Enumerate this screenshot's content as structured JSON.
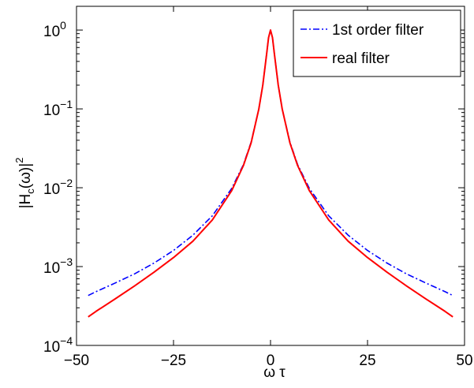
{
  "chart_data": {
    "type": "line",
    "xlabel": "ω τ",
    "ylabel_main": "|H",
    "ylabel_sub": "c",
    "ylabel_mid": "(ω)|",
    "ylabel_sup": "2",
    "x_scale": "linear",
    "y_scale": "log",
    "xlim": [
      -50,
      50
    ],
    "ylim": [
      0.0001,
      2
    ],
    "xticks": [
      -50,
      -25,
      0,
      25,
      50
    ],
    "xtick_labels": [
      "−50",
      "−25",
      "0",
      "25",
      "50"
    ],
    "yticks": [
      0.0001,
      0.001,
      0.01,
      0.1,
      1
    ],
    "ytick_labels": [
      {
        "base": "10",
        "exp": "−4"
      },
      {
        "base": "10",
        "exp": "−3"
      },
      {
        "base": "10",
        "exp": "−2"
      },
      {
        "base": "10",
        "exp": "−1"
      },
      {
        "base": "10",
        "exp": "0"
      }
    ],
    "grid": false,
    "legend_position": "top-right",
    "series": [
      {
        "name": "1st order filter",
        "color": "#0000ff",
        "style": "dashdot",
        "x": [
          -47,
          -45,
          -40,
          -35,
          -30,
          -25,
          -20,
          -15,
          -10,
          -7,
          -5,
          -3,
          -2,
          -1,
          -0.5,
          0,
          0.5,
          1,
          2,
          3,
          5,
          7,
          10,
          15,
          20,
          25,
          30,
          35,
          40,
          45,
          47
        ],
        "y": [
          0.00043,
          0.00048,
          0.00062,
          0.00081,
          0.00111,
          0.0016,
          0.0025,
          0.0044,
          0.0098,
          0.0196,
          0.038,
          0.1,
          0.2,
          0.5,
          0.8,
          1.0,
          0.8,
          0.5,
          0.2,
          0.1,
          0.038,
          0.0196,
          0.0098,
          0.0044,
          0.0025,
          0.0016,
          0.00111,
          0.00081,
          0.00062,
          0.00048,
          0.00043
        ]
      },
      {
        "name": "real filter",
        "color": "#ff0000",
        "style": "solid",
        "x": [
          -47,
          -45,
          -40,
          -35,
          -30,
          -25,
          -20,
          -15,
          -10,
          -7,
          -5,
          -3,
          -2,
          -1,
          -0.5,
          0,
          0.5,
          1,
          2,
          3,
          5,
          7,
          10,
          15,
          20,
          25,
          30,
          35,
          40,
          45,
          47
        ],
        "y": [
          0.00023,
          0.00027,
          0.00039,
          0.00057,
          0.00085,
          0.0013,
          0.0021,
          0.0039,
          0.0092,
          0.0191,
          0.037,
          0.1,
          0.2,
          0.5,
          0.8,
          1.0,
          0.8,
          0.5,
          0.2,
          0.1,
          0.037,
          0.0191,
          0.0092,
          0.0039,
          0.0021,
          0.0013,
          0.00085,
          0.00057,
          0.00039,
          0.00027,
          0.00023
        ]
      }
    ]
  }
}
